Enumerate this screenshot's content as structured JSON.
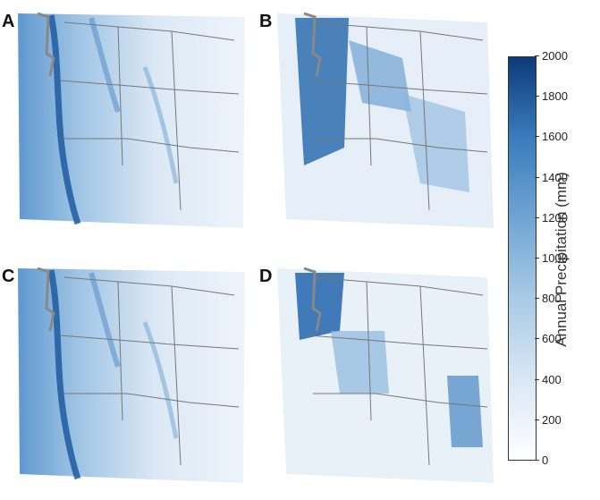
{
  "panels": [
    {
      "letter": "A",
      "kind": "fine"
    },
    {
      "letter": "B",
      "kind": "coarse"
    },
    {
      "letter": "C",
      "kind": "fine"
    },
    {
      "letter": "D",
      "kind": "coarse"
    }
  ],
  "colorbar": {
    "label": "Annual Precipitation (mm)",
    "min": 0,
    "max": 2000,
    "ticks": [
      "0",
      "200",
      "400",
      "600",
      "800",
      "1000",
      "1200",
      "1400",
      "1600",
      "1800",
      "2000"
    ],
    "colors": {
      "low": "#ffffff",
      "mid": "#6fa5d3",
      "high": "#0d3a78"
    }
  }
}
